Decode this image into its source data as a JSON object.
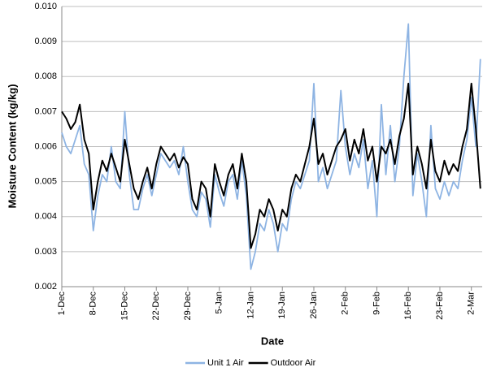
{
  "chart_data": {
    "type": "line",
    "xlabel": "Date",
    "ylabel": "Moisture Content (kg/kg)",
    "x": [
      0,
      1,
      2,
      3,
      4,
      5,
      6,
      7,
      8,
      9,
      10,
      11,
      12,
      13,
      14,
      15,
      16,
      17,
      18,
      19,
      20,
      21,
      22,
      23,
      24,
      25,
      26,
      27,
      28,
      29,
      30,
      31,
      32,
      33,
      34,
      35,
      36,
      37,
      38,
      39,
      40,
      41,
      42,
      43,
      44,
      45,
      46,
      47,
      48,
      49,
      50,
      51,
      52,
      53,
      54,
      55,
      56,
      57,
      58,
      59,
      60,
      61,
      62,
      63,
      64,
      65,
      66,
      67,
      68,
      69,
      70,
      71,
      72,
      73,
      74,
      75,
      76,
      77,
      78,
      79,
      80,
      81,
      82,
      83,
      84,
      85,
      86,
      87,
      88,
      89,
      90,
      91,
      92,
      93
    ],
    "series": [
      {
        "name": "Unit 1 Air",
        "color": "#8eb4e3",
        "values": [
          0.0064,
          0.006,
          0.0058,
          0.0062,
          0.0066,
          0.0055,
          0.0052,
          0.0036,
          0.0046,
          0.0052,
          0.005,
          0.006,
          0.005,
          0.0048,
          0.007,
          0.0052,
          0.0042,
          0.0042,
          0.0048,
          0.0052,
          0.0046,
          0.0052,
          0.0058,
          0.0056,
          0.0054,
          0.0056,
          0.0052,
          0.006,
          0.005,
          0.0042,
          0.004,
          0.0047,
          0.0045,
          0.0037,
          0.0052,
          0.0047,
          0.0043,
          0.005,
          0.0052,
          0.0045,
          0.0056,
          0.0046,
          0.0025,
          0.003,
          0.0038,
          0.0036,
          0.0042,
          0.0038,
          0.003,
          0.0038,
          0.0036,
          0.0045,
          0.005,
          0.0048,
          0.0052,
          0.0056,
          0.0078,
          0.005,
          0.0054,
          0.0048,
          0.0052,
          0.0056,
          0.0076,
          0.006,
          0.0052,
          0.0058,
          0.0054,
          0.0062,
          0.0048,
          0.0056,
          0.004,
          0.0072,
          0.0052,
          0.0066,
          0.005,
          0.006,
          0.008,
          0.0095,
          0.0046,
          0.0058,
          0.005,
          0.004,
          0.0066,
          0.0048,
          0.0045,
          0.005,
          0.0046,
          0.005,
          0.0048,
          0.0056,
          0.0062,
          0.0074,
          0.006,
          0.0085
        ]
      },
      {
        "name": "Outdoor Air",
        "color": "#000000",
        "values": [
          0.007,
          0.0068,
          0.0065,
          0.0067,
          0.0072,
          0.0062,
          0.0058,
          0.0042,
          0.005,
          0.0056,
          0.0053,
          0.0058,
          0.0054,
          0.005,
          0.0062,
          0.0055,
          0.0048,
          0.0045,
          0.005,
          0.0054,
          0.0048,
          0.0055,
          0.006,
          0.0058,
          0.0056,
          0.0058,
          0.0054,
          0.0057,
          0.0055,
          0.0045,
          0.0042,
          0.005,
          0.0048,
          0.004,
          0.0055,
          0.005,
          0.0046,
          0.0052,
          0.0055,
          0.0048,
          0.0058,
          0.005,
          0.0031,
          0.0035,
          0.0042,
          0.004,
          0.0045,
          0.0042,
          0.0036,
          0.0042,
          0.004,
          0.0048,
          0.0052,
          0.005,
          0.0055,
          0.006,
          0.0068,
          0.0055,
          0.0058,
          0.0052,
          0.0056,
          0.006,
          0.0062,
          0.0065,
          0.0056,
          0.0062,
          0.0058,
          0.0065,
          0.0056,
          0.006,
          0.005,
          0.006,
          0.0058,
          0.0062,
          0.0055,
          0.0063,
          0.0068,
          0.0078,
          0.0052,
          0.006,
          0.0055,
          0.0048,
          0.0062,
          0.0053,
          0.005,
          0.0056,
          0.0052,
          0.0055,
          0.0053,
          0.006,
          0.0065,
          0.0078,
          0.0065,
          0.0048
        ]
      }
    ],
    "xlim": [
      0,
      93.4
    ],
    "xticks": [
      {
        "value": 0,
        "label": "1-Dec"
      },
      {
        "value": 7,
        "label": "8-Dec"
      },
      {
        "value": 14,
        "label": "15-Dec"
      },
      {
        "value": 21,
        "label": "22-Dec"
      },
      {
        "value": 28,
        "label": "29-Dec"
      },
      {
        "value": 35,
        "label": "5-Jan"
      },
      {
        "value": 42,
        "label": "12-Jan"
      },
      {
        "value": 49,
        "label": "19-Jan"
      },
      {
        "value": 56,
        "label": "26-Jan"
      },
      {
        "value": 63,
        "label": "2-Feb"
      },
      {
        "value": 70,
        "label": "9-Feb"
      },
      {
        "value": 77,
        "label": "16-Feb"
      },
      {
        "value": 84,
        "label": "23-Feb"
      },
      {
        "value": 91,
        "label": "2-Mar"
      }
    ],
    "ylim": [
      0.002,
      0.01
    ],
    "yticks": [
      0.002,
      0.003,
      0.004,
      0.005,
      0.006,
      0.007,
      0.008,
      0.009,
      {
        "value": 0.01,
        "label": "0.010"
      }
    ],
    "grid": true,
    "legend": "bottom"
  }
}
